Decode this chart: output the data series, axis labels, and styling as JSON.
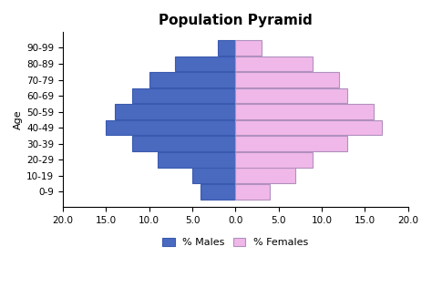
{
  "title": "Population Pyramid",
  "age_groups": [
    "0-9",
    "10-19",
    "20-29",
    "30-39",
    "40-49",
    "50-59",
    "60-69",
    "70-79",
    "80-89",
    "90-99"
  ],
  "males": [
    4.0,
    5.0,
    9.0,
    12.0,
    15.0,
    14.0,
    12.0,
    10.0,
    7.0,
    2.0
  ],
  "females": [
    4.0,
    7.0,
    9.0,
    13.0,
    17.0,
    16.0,
    13.0,
    12.0,
    9.0,
    3.0
  ],
  "male_color": "#4a6abf",
  "female_color": "#f0b8e8",
  "male_edge_color": "#3a5aaf",
  "female_edge_color": "#b090c0",
  "xlim": [
    -20,
    20
  ],
  "xticks": [
    -20,
    -15,
    -10,
    -5,
    0,
    5,
    10,
    15,
    20
  ],
  "xticklabels": [
    "20.0",
    "15.0",
    "10.0",
    "5.0",
    "0.0",
    "5.0",
    "10.0",
    "15.0",
    "20.0"
  ],
  "ylabel": "Age",
  "background_color": "#ffffff",
  "title_fontsize": 11,
  "axis_fontsize": 8,
  "tick_fontsize": 7.5,
  "legend_fontsize": 8,
  "bar_height": 0.95
}
